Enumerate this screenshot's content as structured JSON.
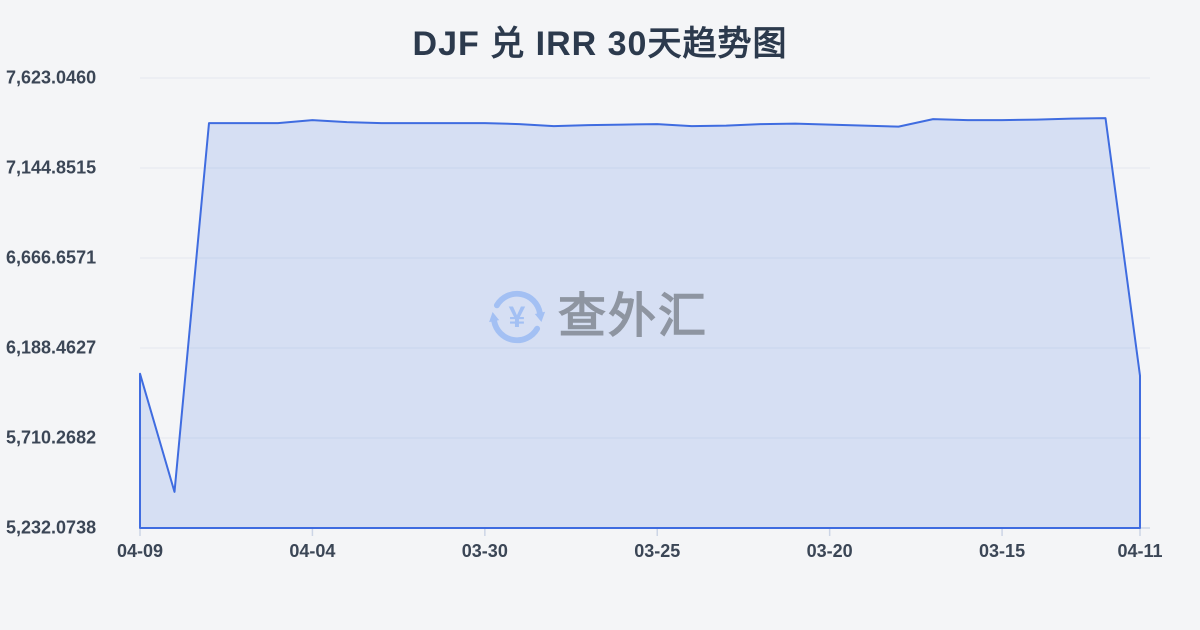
{
  "page": {
    "background": "#f4f5f7"
  },
  "watermark": {
    "icon": "currency-exchange-icon",
    "icon_glyph": "¥",
    "icon_color": "#a3c0f3",
    "text": "查外汇",
    "text_color": "#8e95a1"
  },
  "chart_data": {
    "type": "area",
    "title": "DJF 兑 IRR 30天趋势图",
    "xlabel": "",
    "ylabel": "",
    "x_tick_labels": [
      "04-09",
      "04-04",
      "03-30",
      "03-25",
      "03-20",
      "03-15",
      "04-11"
    ],
    "x_tick_indices": [
      0,
      5,
      10,
      15,
      20,
      25,
      29
    ],
    "y_tick_labels": [
      "7,623.0460",
      "7,144.8515",
      "6,666.6571",
      "6,188.4627",
      "5,710.2682",
      "5,232.0738"
    ],
    "y_tick_values": [
      7623.046,
      7144.8515,
      6666.6571,
      6188.4627,
      5710.2682,
      5232.0738
    ],
    "ylim": [
      5232.0738,
      7623.046
    ],
    "values": [
      6052.1,
      5423.8,
      7383.4,
      7383.4,
      7383.4,
      7399.4,
      7388.8,
      7383.4,
      7383.4,
      7383.4,
      7383.4,
      7378.1,
      7367.5,
      7372.8,
      7375.4,
      7378.1,
      7367.5,
      7370.1,
      7378.1,
      7380.8,
      7375.4,
      7370.1,
      7364.8,
      7404.7,
      7399.4,
      7399.4,
      7402.1,
      7407.4,
      7410.0,
      6041.5
    ],
    "grid": true,
    "legend": false,
    "colors": {
      "line": "#3f6ce0",
      "area_fill": "rgba(64,110,224,0.16)",
      "grid_line": "#e3e7ef",
      "axis_line": "#ccd5e6",
      "tick_label": "#3b4656",
      "title": "#2c3a4d"
    }
  }
}
